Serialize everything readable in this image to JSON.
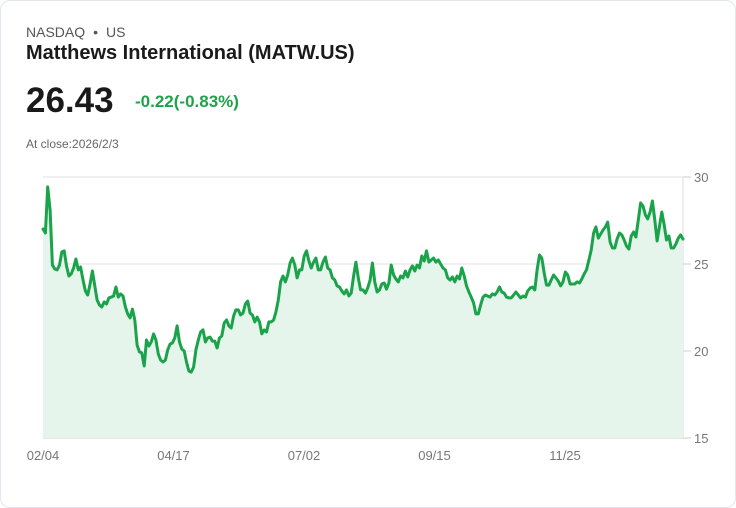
{
  "header": {
    "exchange": "NASDAQ",
    "separator": "•",
    "country": "US",
    "title": "Matthews International (MATW.US)",
    "price": "26.43",
    "change": "-0.22(-0.83%)",
    "close_label": "At close:2026/2/3"
  },
  "colors": {
    "line": "#1aa34a",
    "fill": "#e5f5eb",
    "grid": "#e2e2e2",
    "change": "#1fa34a"
  },
  "chart_data": {
    "type": "area",
    "title": "Matthews International (MATW.US)",
    "xlabel": "",
    "ylabel": "",
    "ylim": [
      15,
      30
    ],
    "yticks": [
      "30",
      "25",
      "20",
      "15"
    ],
    "ytick_values": [
      30,
      25,
      20,
      15
    ],
    "xticks": [
      "02/04",
      "04/17",
      "07/02",
      "09/15",
      "11/25"
    ],
    "grid": true,
    "y_axis_position": "right",
    "series": [
      {
        "name": "MATW.US",
        "values": [
          27.01,
          26.78,
          29.43,
          28.1,
          24.94,
          24.71,
          24.66,
          24.94,
          25.69,
          25.75,
          24.89,
          24.31,
          24.43,
          24.77,
          25.29,
          24.66,
          24.83,
          24.08,
          23.45,
          23.22,
          23.85,
          24.6,
          23.74,
          22.93,
          22.64,
          22.53,
          22.82,
          22.7,
          23.05,
          23.1,
          23.16,
          23.68,
          23.1,
          23.28,
          23.16,
          22.53,
          22.13,
          21.9,
          22.41,
          21.78,
          20.34,
          19.94,
          19.89,
          19.14,
          20.63,
          20.29,
          20.52,
          20.98,
          20.63,
          19.83,
          19.48,
          19.37,
          19.48,
          20.06,
          20.4,
          20.46,
          20.75,
          21.44,
          20.52,
          20.11,
          20.0,
          19.37,
          18.85,
          18.79,
          19.08,
          20.06,
          20.63,
          21.09,
          21.21,
          20.52,
          20.75,
          20.8,
          20.57,
          20.57,
          20.17,
          20.75,
          20.86,
          21.61,
          21.78,
          21.44,
          21.32,
          22.01,
          22.36,
          22.36,
          22.07,
          22.18,
          22.7,
          22.87,
          22.18,
          22.07,
          21.67,
          21.95,
          21.67,
          20.98,
          21.21,
          21.09,
          21.67,
          21.67,
          21.78,
          22.24,
          22.93,
          23.97,
          24.31,
          23.97,
          24.37,
          25.06,
          25.34,
          24.94,
          24.2,
          24.66,
          24.66,
          25.46,
          25.75,
          25.17,
          24.77,
          25.11,
          25.34,
          24.66,
          24.66,
          25.11,
          25.4,
          24.77,
          24.66,
          24.2,
          24.08,
          23.74,
          23.68,
          23.45,
          23.28,
          23.51,
          23.16,
          23.33,
          24.31,
          25.11,
          24.2,
          23.51,
          23.51,
          23.33,
          23.62,
          24.08,
          25.06,
          23.97,
          23.39,
          23.51,
          23.85,
          23.91,
          23.56,
          23.91,
          24.94,
          24.37,
          24.14,
          23.97,
          24.31,
          24.2,
          24.6,
          24.25,
          24.66,
          24.89,
          24.6,
          24.94,
          24.77,
          25.46,
          25.17,
          25.75,
          25.11,
          25.23,
          25.34,
          25.11,
          25.23,
          25.0,
          24.77,
          24.66,
          24.2,
          24.08,
          24.25,
          23.97,
          24.31,
          24.14,
          24.77,
          24.31,
          23.74,
          23.39,
          23.1,
          22.76,
          22.13,
          22.13,
          22.64,
          23.1,
          23.22,
          23.16,
          23.1,
          23.28,
          23.22,
          23.39,
          23.68,
          23.39,
          23.33,
          23.1,
          23.05,
          23.05,
          23.22,
          23.39,
          23.22,
          23.05,
          23.16,
          23.1,
          23.45,
          23.62,
          23.68,
          23.51,
          24.66,
          25.52,
          25.34,
          24.48,
          23.79,
          23.79,
          24.08,
          24.37,
          24.2,
          24.02,
          23.74,
          23.97,
          24.54,
          24.37,
          23.85,
          23.85,
          23.85,
          23.97,
          23.91,
          24.14,
          24.43,
          24.66,
          25.23,
          25.8,
          26.78,
          27.13,
          26.49,
          26.72,
          26.95,
          27.13,
          27.41,
          26.26,
          25.92,
          25.92,
          26.44,
          26.78,
          26.67,
          26.38,
          26.03,
          25.86,
          26.61,
          26.84,
          26.55,
          27.53,
          28.51,
          28.33,
          27.82,
          27.59,
          27.99,
          28.62,
          27.53,
          26.32,
          27.18,
          27.99,
          27.24,
          26.38,
          26.61,
          25.92,
          25.92,
          26.15,
          26.49,
          26.67,
          26.43
        ]
      }
    ]
  }
}
